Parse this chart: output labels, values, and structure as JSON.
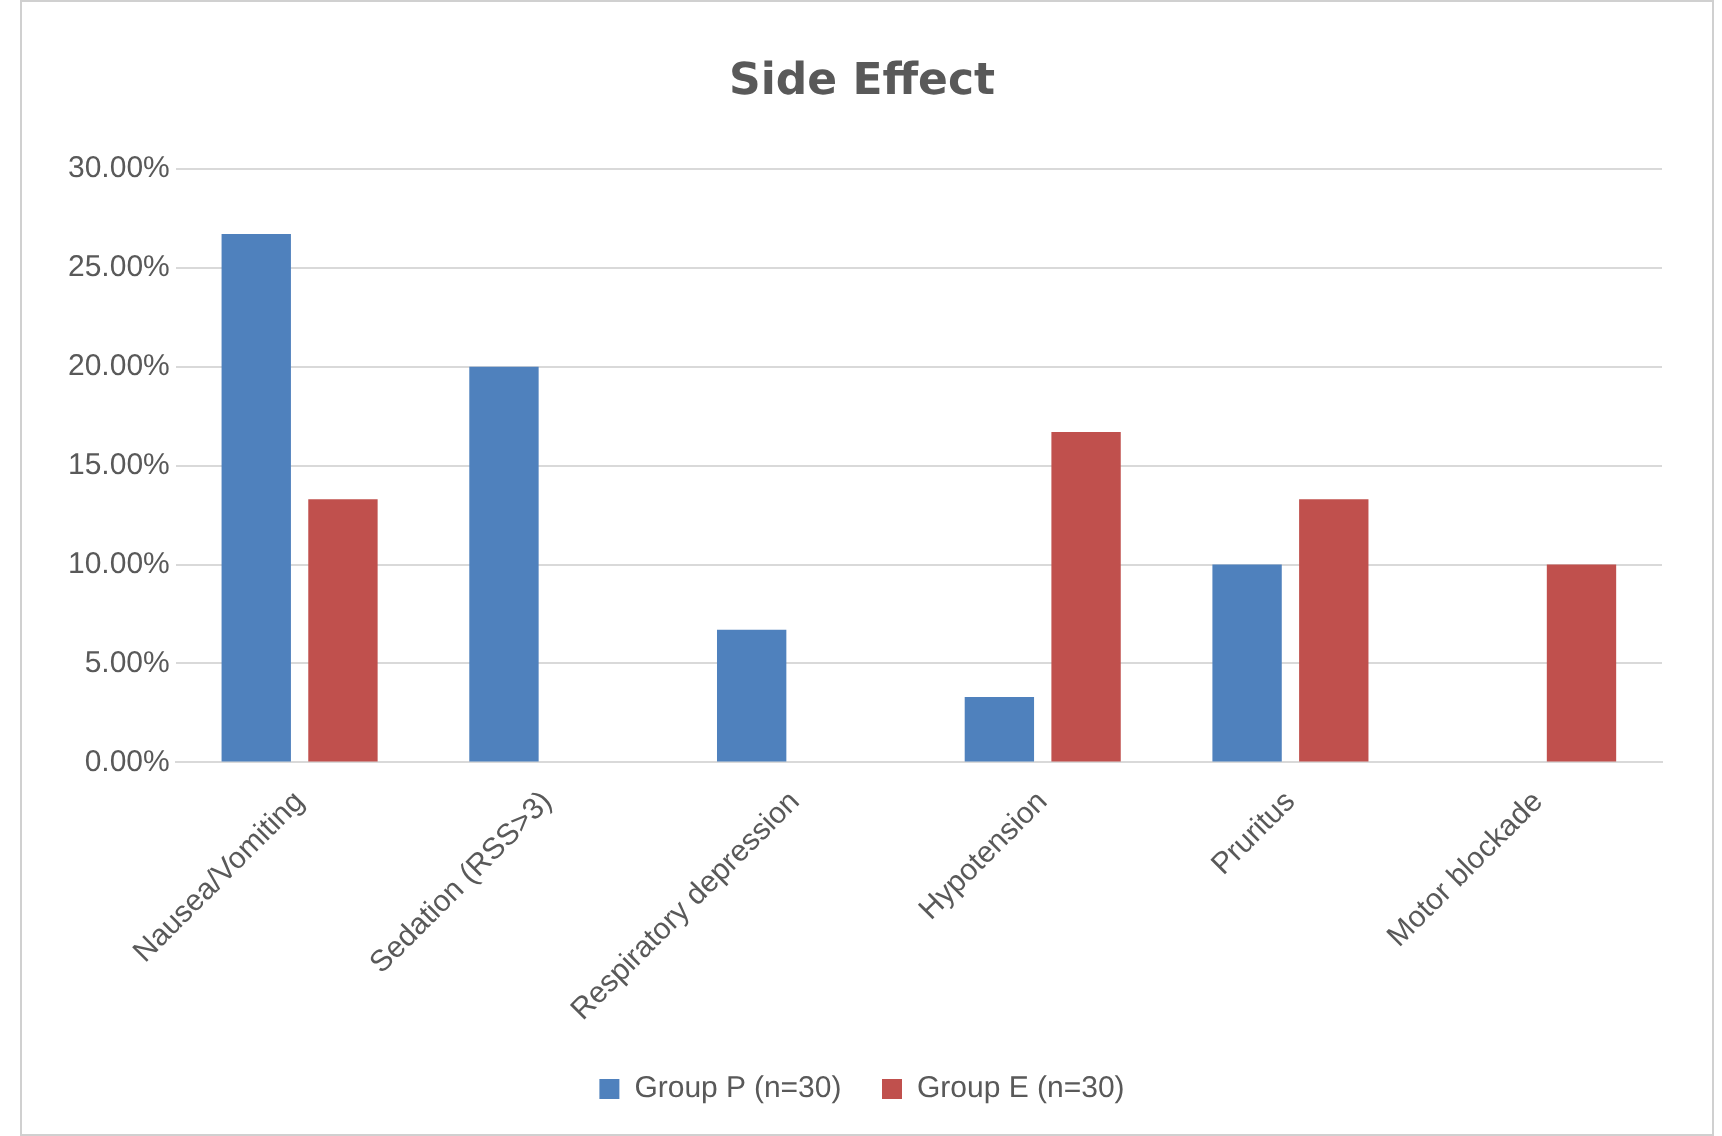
{
  "chart_data": {
    "type": "bar",
    "title": "Side Effect",
    "categories": [
      "Nausea/Vomiting",
      "Sedation (RSS>3)",
      "Respiratory depression",
      "Hypotension",
      "Pruritus",
      "Motor blockade"
    ],
    "series": [
      {
        "name": "Group P (n=30)",
        "color": "#4f81bd",
        "values": [
          26.7,
          20,
          6.7,
          3.3,
          10,
          0
        ]
      },
      {
        "name": "Group E (n=30)",
        "color": "#c0504d",
        "values": [
          13.3,
          0,
          0,
          16.7,
          13.3,
          10
        ]
      }
    ],
    "ylim": [
      0,
      30
    ],
    "yticks": [
      {
        "value": 0,
        "label": "0.00%"
      },
      {
        "value": 5,
        "label": "5.00%"
      },
      {
        "value": 10,
        "label": "10.00%"
      },
      {
        "value": 15,
        "label": "15.00%"
      },
      {
        "value": 20,
        "label": "20.00%"
      },
      {
        "value": 25,
        "label": "25.00%"
      },
      {
        "value": 30,
        "label": "30.00%"
      }
    ],
    "grid": "y",
    "legend": "bottom"
  }
}
